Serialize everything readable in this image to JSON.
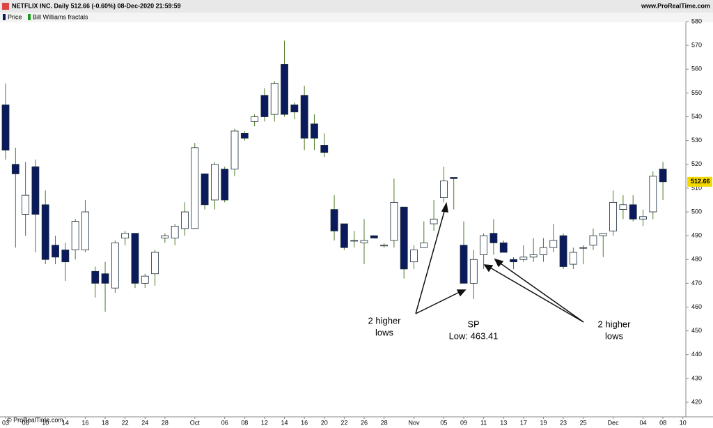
{
  "chart_data": {
    "type": "candlestick",
    "title": "NETFLIX INC. Daily 512.66 (-0.60%) 08-Dec-2020 21:59:59",
    "source": "www.ProRealTime.com",
    "copyright": "© ProRealTime.com",
    "legend": [
      "Price",
      "Bill Williams fractals"
    ],
    "legend_colors": [
      "#0a1a5c",
      "#1a9a1a"
    ],
    "up_color": "#ffffff",
    "down_color": "#0a1a5c",
    "wick_color": "#4a7a22",
    "outline_color": "#1a2a3a",
    "open": [
      545,
      520,
      499,
      519,
      503,
      486,
      484,
      484,
      484,
      475,
      474,
      468,
      489,
      491,
      470,
      474,
      489,
      489,
      493,
      493,
      516,
      505,
      518,
      518,
      533,
      538,
      549,
      541,
      562,
      545,
      549,
      537,
      528,
      501,
      495,
      488,
      487,
      490,
      486,
      488,
      502,
      479,
      485,
      495,
      506,
      514.5,
      486,
      470,
      482,
      491,
      487,
      480,
      480,
      481,
      482,
      485,
      490,
      478,
      485,
      486,
      490,
      492,
      501,
      503,
      497,
      500,
      518
    ],
    "high": [
      554,
      527,
      521,
      522,
      509,
      490,
      487,
      497,
      505,
      477,
      479,
      488,
      492,
      491,
      474,
      484,
      491,
      495,
      504,
      529,
      516,
      521,
      519,
      535,
      534,
      541,
      552,
      555,
      572,
      546,
      553,
      541,
      533,
      507,
      495,
      492,
      497,
      490,
      487,
      514,
      502,
      486,
      496,
      505,
      519,
      514.5,
      496,
      484,
      491,
      497,
      488,
      481,
      486,
      489,
      489,
      495,
      491,
      485,
      486,
      493,
      491,
      509,
      507,
      507,
      501,
      517,
      521
    ],
    "low": [
      522,
      485,
      490,
      483,
      478,
      478,
      471,
      480,
      483,
      464,
      458,
      466,
      486,
      468,
      468,
      469,
      487,
      486,
      490,
      493,
      501,
      501,
      504,
      515,
      530,
      536,
      538,
      538,
      540,
      539,
      526,
      526,
      523,
      488,
      484,
      485,
      478,
      489,
      485,
      485,
      472,
      476,
      485,
      492,
      504,
      501,
      470,
      463.41,
      476,
      482,
      483,
      476,
      479,
      479,
      479,
      483,
      476,
      476,
      478,
      484,
      481,
      490,
      497,
      496,
      494,
      497,
      505
    ],
    "close": [
      526,
      516,
      507,
      499,
      480,
      481,
      479,
      496,
      500,
      470,
      470,
      487,
      491,
      470,
      473,
      483,
      490,
      494,
      500,
      527,
      503,
      520,
      505,
      534,
      531,
      540,
      540,
      554,
      541,
      542,
      531,
      531,
      525,
      492,
      485,
      488,
      488,
      489,
      486,
      504,
      476,
      484,
      487,
      497,
      513,
      514,
      470,
      480,
      490,
      487,
      483,
      479,
      481,
      482,
      485,
      488,
      477,
      483,
      485,
      490,
      491,
      504,
      503,
      497,
      498,
      515,
      512.66
    ],
    "last_price_label": "512.66",
    "xlim": [
      -0.56,
      68.3
    ],
    "xticks": [
      {
        "value": 0,
        "label": "03"
      },
      {
        "value": 2,
        "label": "08"
      },
      {
        "value": 4,
        "label": "10"
      },
      {
        "value": 6,
        "label": "14"
      },
      {
        "value": 8,
        "label": "16"
      },
      {
        "value": 10,
        "label": "18"
      },
      {
        "value": 12,
        "label": "22"
      },
      {
        "value": 14,
        "label": "24"
      },
      {
        "value": 16,
        "label": "28"
      },
      {
        "value": 19,
        "label": "Oct"
      },
      {
        "value": 22,
        "label": "06"
      },
      {
        "value": 24,
        "label": "08"
      },
      {
        "value": 26,
        "label": "12"
      },
      {
        "value": 28,
        "label": "14"
      },
      {
        "value": 30,
        "label": "16"
      },
      {
        "value": 32,
        "label": "20"
      },
      {
        "value": 34,
        "label": "22"
      },
      {
        "value": 36,
        "label": "26"
      },
      {
        "value": 38,
        "label": "28"
      },
      {
        "value": 41,
        "label": "Nov"
      },
      {
        "value": 44,
        "label": "05"
      },
      {
        "value": 46,
        "label": "09"
      },
      {
        "value": 48,
        "label": "11"
      },
      {
        "value": 50,
        "label": "13"
      },
      {
        "value": 52,
        "label": "17"
      },
      {
        "value": 54,
        "label": "19"
      },
      {
        "value": 56,
        "label": "23"
      },
      {
        "value": 58,
        "label": "25"
      },
      {
        "value": 61,
        "label": "Dec"
      },
      {
        "value": 64,
        "label": "04"
      },
      {
        "value": 66,
        "label": "08"
      },
      {
        "value": 68,
        "label": "10"
      }
    ],
    "ylim": [
      420,
      580
    ],
    "yticks": [
      420,
      430,
      440,
      450,
      460,
      470,
      480,
      490,
      500,
      510,
      520,
      530,
      540,
      550,
      560,
      570,
      580
    ],
    "annotations": [
      {
        "lines": [
          "2 higher",
          "lows"
        ]
      },
      {
        "lines": [
          "SP",
          "Low: 463.41"
        ]
      },
      {
        "lines": [
          "2 higher",
          "lows"
        ]
      }
    ]
  }
}
